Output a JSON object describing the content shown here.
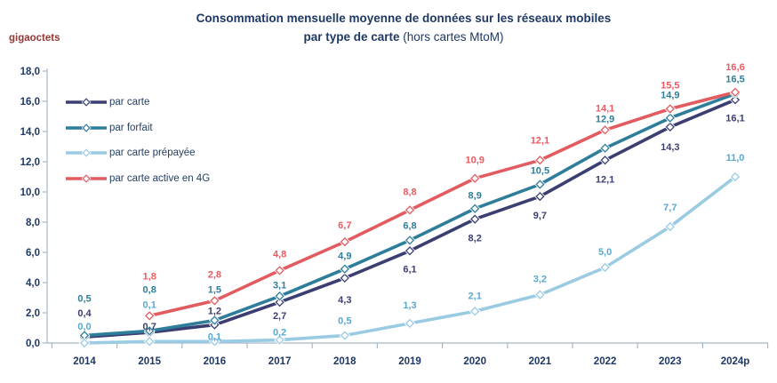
{
  "chart": {
    "title_line1": "Consommation mensuelle moyenne de données sur les réseaux mobiles",
    "title_line2_bold": "par type de carte ",
    "title_line2_regular": "(hors cartes MtoM)",
    "unit": "gigaoctets"
  },
  "chart_data": {
    "type": "line",
    "title": "Consommation mensuelle moyenne de données sur les réseaux mobiles par type de carte (hors cartes MtoM)",
    "ylabel": "gigaoctets",
    "ylim": [
      0,
      18
    ],
    "ytick_step": 2,
    "grid": false,
    "legend_position": "top-left",
    "categories": [
      "2014",
      "2015",
      "2016",
      "2017",
      "2018",
      "2019",
      "2020",
      "2021",
      "2022",
      "2023",
      "2024p"
    ],
    "series": [
      {
        "name": "par carte",
        "color": "#3B3E71",
        "label_color": "#3B3E71",
        "values": [
          0.4,
          0.7,
          1.2,
          2.7,
          4.3,
          6.1,
          8.2,
          9.7,
          12.1,
          14.3,
          16.1
        ]
      },
      {
        "name": "par forfait",
        "color": "#2E7E9B",
        "label_color": "#2E7E9B",
        "values": [
          0.5,
          0.8,
          1.5,
          3.1,
          4.9,
          6.8,
          8.9,
          10.5,
          12.9,
          14.9,
          16.5
        ]
      },
      {
        "name": "par carte prépayée",
        "color": "#9ACBE3",
        "label_color": "#58A9D2",
        "values": [
          0.0,
          0.1,
          0.1,
          0.2,
          0.5,
          1.3,
          2.1,
          3.2,
          5.0,
          7.7,
          11.0
        ]
      },
      {
        "name": "par carte active en 4G",
        "color": "#E15B60",
        "label_color": "#EB5A61",
        "values": [
          null,
          1.8,
          2.8,
          4.8,
          6.7,
          8.8,
          10.9,
          12.1,
          14.1,
          15.5,
          16.6
        ]
      }
    ],
    "axis_color": "#A8B7C7"
  }
}
